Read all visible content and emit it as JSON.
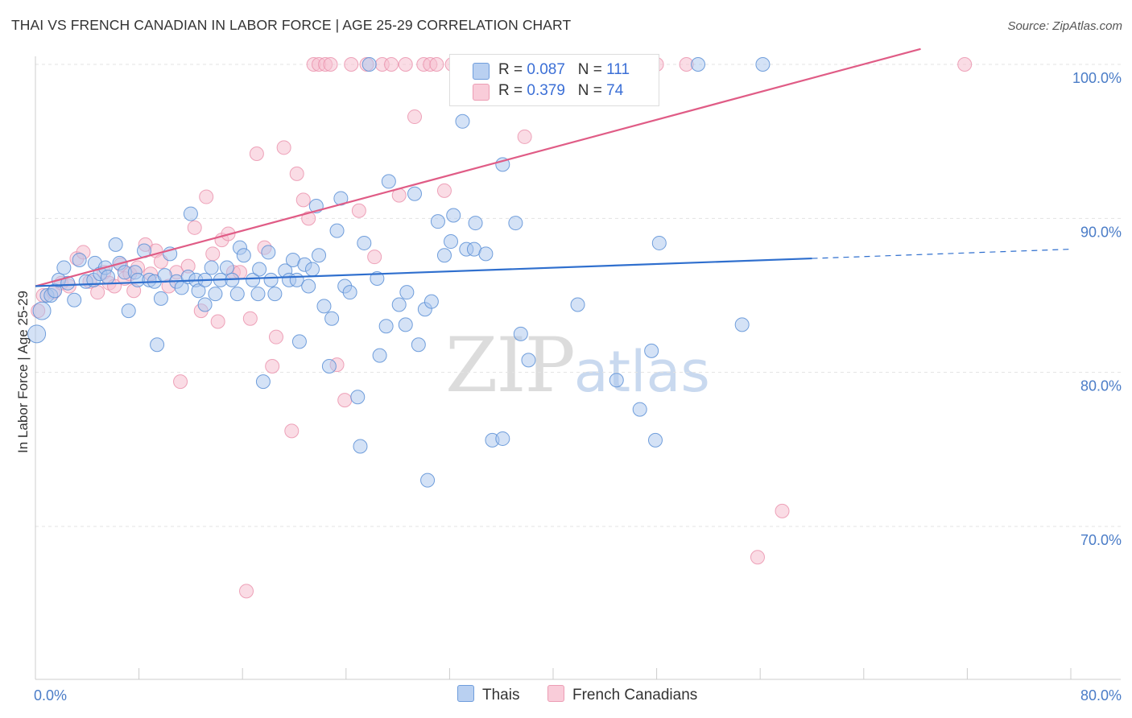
{
  "title": "THAI VS FRENCH CANADIAN IN LABOR FORCE | AGE 25-29 CORRELATION CHART",
  "source": "Source: ZipAtlas.com",
  "watermark": {
    "zip": "ZIP",
    "atlas": "atlas"
  },
  "legend": {
    "thai": {
      "r_label": "R = ",
      "r_value": "0.087",
      "n_label": "N = ",
      "n_value": "111"
    },
    "french": {
      "r_label": "R = ",
      "r_value": "0.379",
      "n_label": "N = ",
      "n_value": "74"
    }
  },
  "bottom_legend": {
    "thai": "Thais",
    "french": "French Canadians"
  },
  "colors": {
    "thai_fill": "#a9c6ee",
    "thai_stroke": "#5b8fd6",
    "thai_line": "#2f6fce",
    "french_fill": "#f6c0cf",
    "french_stroke": "#ea8faa",
    "french_line": "#e05c86",
    "grid": "#e3e3e3",
    "axis": "#cccccc"
  },
  "chart_data": {
    "type": "scatter",
    "title": "THAI VS FRENCH CANADIAN IN LABOR FORCE | AGE 25-29 CORRELATION CHART",
    "xlabel": "",
    "ylabel": "In Labor Force | Age 25-29",
    "xlim": [
      0,
      80
    ],
    "ylim": [
      59.5,
      101
    ],
    "x_tick_labels": [
      "0.0%",
      "80.0%"
    ],
    "y_ticks": [
      70,
      80,
      90,
      100
    ],
    "y_tick_labels": [
      "70.0%",
      "80.0%",
      "90.0%",
      "100.0%"
    ],
    "series": [
      {
        "name": "Thais",
        "r": 0.087,
        "n": 111,
        "trend": {
          "x0": 0,
          "y0": 85.6,
          "x1": 60,
          "y1": 87.4,
          "dashed_to_x": 80,
          "dashed_to_y": 88.0
        },
        "points": [
          [
            0.1,
            82.5
          ],
          [
            0.5,
            84
          ],
          [
            0.9,
            85
          ],
          [
            1.2,
            85
          ],
          [
            1.5,
            85.3
          ],
          [
            1.8,
            86
          ],
          [
            2.2,
            86.8
          ],
          [
            2.5,
            85.8
          ],
          [
            3.0,
            84.7
          ],
          [
            3.4,
            87.3
          ],
          [
            3.9,
            85.9
          ],
          [
            4.5,
            86
          ],
          [
            4.6,
            87.1
          ],
          [
            5.0,
            86.4
          ],
          [
            5.4,
            86.8
          ],
          [
            5.6,
            86.2
          ],
          [
            6.2,
            88.3
          ],
          [
            6.5,
            87.1
          ],
          [
            6.9,
            86.5
          ],
          [
            7.2,
            84
          ],
          [
            7.7,
            86.5
          ],
          [
            7.9,
            86.0
          ],
          [
            8.4,
            87.9
          ],
          [
            8.8,
            86.0
          ],
          [
            9.2,
            85.9
          ],
          [
            9.4,
            81.8
          ],
          [
            9.7,
            84.8
          ],
          [
            10.0,
            86.3
          ],
          [
            10.4,
            87.7
          ],
          [
            10.9,
            85.9
          ],
          [
            11.3,
            85.5
          ],
          [
            11.8,
            86.2
          ],
          [
            12.0,
            90.3
          ],
          [
            12.4,
            86
          ],
          [
            12.6,
            85.3
          ],
          [
            13.1,
            86
          ],
          [
            13.1,
            84.4
          ],
          [
            13.6,
            86.8
          ],
          [
            13.9,
            85.1
          ],
          [
            14.3,
            86
          ],
          [
            14.8,
            86.8
          ],
          [
            15.2,
            86
          ],
          [
            15.6,
            85.1
          ],
          [
            15.8,
            88.1
          ],
          [
            16.1,
            87.6
          ],
          [
            16.8,
            86.0
          ],
          [
            17.3,
            86.7
          ],
          [
            17.2,
            85.1
          ],
          [
            17.6,
            79.4
          ],
          [
            18.0,
            87.8
          ],
          [
            18.2,
            86.0
          ],
          [
            18.5,
            85.1
          ],
          [
            19.3,
            86.6
          ],
          [
            19.6,
            86.0
          ],
          [
            19.9,
            87.3
          ],
          [
            20.2,
            86.0
          ],
          [
            20.4,
            82.0
          ],
          [
            20.8,
            87.0
          ],
          [
            21.1,
            85.6
          ],
          [
            21.4,
            86.7
          ],
          [
            21.7,
            90.8
          ],
          [
            21.9,
            87.6
          ],
          [
            22.3,
            84.3
          ],
          [
            22.7,
            80.4
          ],
          [
            22.9,
            83.5
          ],
          [
            23.3,
            89.2
          ],
          [
            23.6,
            91.3
          ],
          [
            23.9,
            85.6
          ],
          [
            24.3,
            85.2
          ],
          [
            24.9,
            78.4
          ],
          [
            25.1,
            75.2
          ],
          [
            25.4,
            88.4
          ],
          [
            25.8,
            100
          ],
          [
            26.4,
            86.1
          ],
          [
            26.6,
            81.1
          ],
          [
            27.1,
            83.0
          ],
          [
            27.3,
            92.4
          ],
          [
            28.1,
            84.4
          ],
          [
            28.6,
            83.1
          ],
          [
            28.7,
            85.2
          ],
          [
            29.3,
            91.6
          ],
          [
            29.6,
            81.8
          ],
          [
            30.3,
            73.0
          ],
          [
            30.1,
            84.1
          ],
          [
            30.6,
            84.6
          ],
          [
            31.1,
            89.8
          ],
          [
            31.6,
            87.6
          ],
          [
            32.1,
            88.5
          ],
          [
            32.3,
            90.2
          ],
          [
            33.0,
            96.3
          ],
          [
            33.3,
            88.0
          ],
          [
            33.9,
            88.0
          ],
          [
            34.0,
            89.7
          ],
          [
            35.3,
            75.6
          ],
          [
            36.1,
            75.7
          ],
          [
            34.8,
            87.7
          ],
          [
            36.1,
            93.5
          ],
          [
            37.1,
            89.7
          ],
          [
            37.5,
            82.5
          ],
          [
            38.1,
            80.8
          ],
          [
            41.9,
            84.4
          ],
          [
            42.1,
            100
          ],
          [
            44.9,
            79.5
          ],
          [
            46.7,
            77.6
          ],
          [
            47.6,
            81.4
          ],
          [
            47.9,
            75.6
          ],
          [
            48.2,
            88.4
          ],
          [
            51.2,
            100
          ],
          [
            54.6,
            83.1
          ],
          [
            56.2,
            100
          ]
        ]
      },
      {
        "name": "French Canadians",
        "r": 0.379,
        "n": 74,
        "trend": {
          "x0": 0,
          "y0": 85.6,
          "x1": 68.4,
          "y1": 101
        },
        "points": [
          [
            0.2,
            84.0
          ],
          [
            0.6,
            85.0
          ],
          [
            1.4,
            85.2
          ],
          [
            2.0,
            85.8
          ],
          [
            2.6,
            85.6
          ],
          [
            3.2,
            87.4
          ],
          [
            3.7,
            87.8
          ],
          [
            4.2,
            85.9
          ],
          [
            4.8,
            85.2
          ],
          [
            5.3,
            86.5
          ],
          [
            5.7,
            85.8
          ],
          [
            6.1,
            85.6
          ],
          [
            6.6,
            87.0
          ],
          [
            6.9,
            86.1
          ],
          [
            7.3,
            86.4
          ],
          [
            7.6,
            85.3
          ],
          [
            7.9,
            86.8
          ],
          [
            8.5,
            88.3
          ],
          [
            8.9,
            86.4
          ],
          [
            9.3,
            87.9
          ],
          [
            9.7,
            87.2
          ],
          [
            10.3,
            85.6
          ],
          [
            10.9,
            86.5
          ],
          [
            11.2,
            79.4
          ],
          [
            11.8,
            86.9
          ],
          [
            12.3,
            89.4
          ],
          [
            12.8,
            84.0
          ],
          [
            13.2,
            91.4
          ],
          [
            13.7,
            87.7
          ],
          [
            14.1,
            83.3
          ],
          [
            14.4,
            88.6
          ],
          [
            14.9,
            89.0
          ],
          [
            15.3,
            86.5
          ],
          [
            15.8,
            86.5
          ],
          [
            16.3,
            65.8
          ],
          [
            16.6,
            83.5
          ],
          [
            17.1,
            94.2
          ],
          [
            17.7,
            88.1
          ],
          [
            18.3,
            80.4
          ],
          [
            18.6,
            82.3
          ],
          [
            19.2,
            94.6
          ],
          [
            19.8,
            76.2
          ],
          [
            20.2,
            92.9
          ],
          [
            20.7,
            91.2
          ],
          [
            21.1,
            90.0
          ],
          [
            21.5,
            100
          ],
          [
            21.9,
            100
          ],
          [
            22.4,
            100
          ],
          [
            22.8,
            100
          ],
          [
            23.3,
            80.5
          ],
          [
            23.9,
            78.2
          ],
          [
            24.4,
            100
          ],
          [
            25.0,
            90.5
          ],
          [
            25.6,
            100
          ],
          [
            26.2,
            87.5
          ],
          [
            26.8,
            100
          ],
          [
            27.5,
            100
          ],
          [
            28.1,
            91.5
          ],
          [
            28.6,
            100
          ],
          [
            29.3,
            96.6
          ],
          [
            30.0,
            100
          ],
          [
            30.5,
            100
          ],
          [
            31.0,
            100
          ],
          [
            31.6,
            91.8
          ],
          [
            32.2,
            100
          ],
          [
            33.5,
            100
          ],
          [
            34.8,
            100
          ],
          [
            37.8,
            95.3
          ],
          [
            42.0,
            100
          ],
          [
            44.5,
            100
          ],
          [
            48.0,
            100
          ],
          [
            50.3,
            100
          ],
          [
            55.8,
            68.0
          ],
          [
            57.7,
            71.0
          ],
          [
            71.8,
            100
          ]
        ]
      }
    ]
  }
}
